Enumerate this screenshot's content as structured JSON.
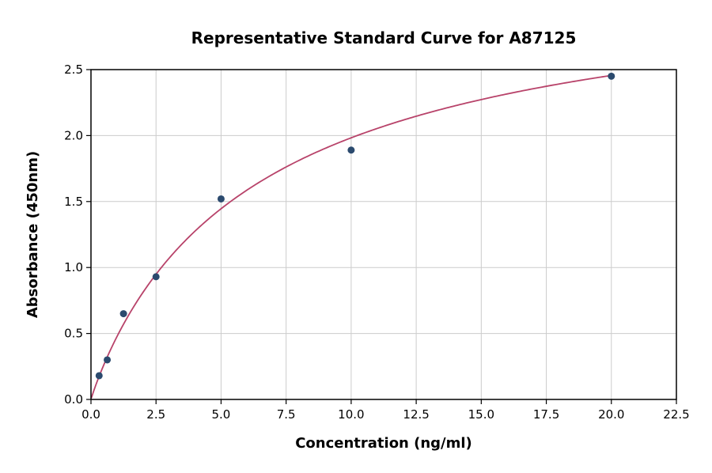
{
  "chart_data": {
    "type": "scatter",
    "title": "Representative Standard Curve for A87125",
    "xlabel": "Concentration (ng/ml)",
    "ylabel": "Absorbance (450nm)",
    "xlim": [
      0,
      22.5
    ],
    "ylim": [
      0,
      2.5
    ],
    "grid": true,
    "legend": "none",
    "x_ticks": {
      "values": [
        0,
        2.5,
        5,
        7.5,
        10,
        12.5,
        15,
        17.5,
        20,
        22.5
      ],
      "labels": [
        "0.0",
        "2.5",
        "5.0",
        "7.5",
        "10.0",
        "12.5",
        "15.0",
        "17.5",
        "20.0",
        "22.5"
      ]
    },
    "y_ticks": {
      "values": [
        0,
        0.5,
        1.0,
        1.5,
        2.0,
        2.5
      ],
      "labels": [
        "0.0",
        "0.5",
        "1.0",
        "1.5",
        "2.0",
        "2.5"
      ]
    },
    "points": [
      {
        "x": 0.313,
        "y": 0.18
      },
      {
        "x": 0.625,
        "y": 0.3
      },
      {
        "x": 1.25,
        "y": 0.65
      },
      {
        "x": 2.5,
        "y": 0.93
      },
      {
        "x": 5,
        "y": 1.52
      },
      {
        "x": 10,
        "y": 1.89
      },
      {
        "x": 20,
        "y": 2.45
      }
    ],
    "fit_curve": {
      "model": "4PL",
      "a": 0.0,
      "b": 0.95,
      "c": 6.5,
      "d": 3.3,
      "x_range": [
        0.02,
        20
      ]
    },
    "style": {
      "point_color": "#2b4a6e",
      "curve_color": "#b8436a",
      "grid_color": "#cccccc",
      "axis_color": "#000000",
      "background": "#ffffff",
      "marker_radius": 4.5,
      "curve_width": 1.8,
      "frame_width": 1.5
    }
  }
}
